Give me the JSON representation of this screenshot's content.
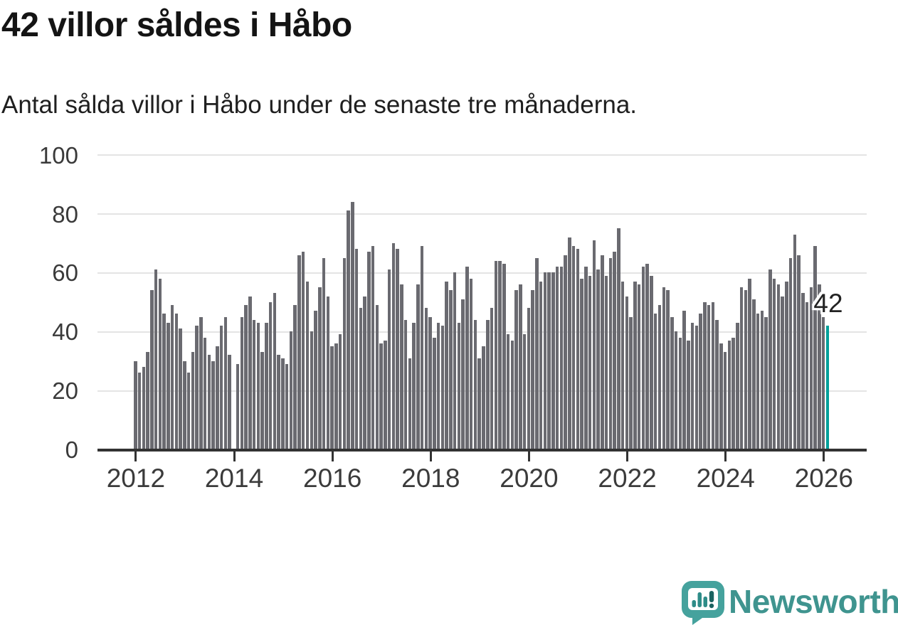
{
  "header": {
    "title": "42 villor såldes i Håbo",
    "subtitle": "Antal sålda villor i Håbo under de senaste tre månaderna."
  },
  "annotation": {
    "label": "42"
  },
  "logo": {
    "text": "Newsworthy",
    "icon": "newsworthy-speech-bubble-bar-chart-icon"
  },
  "colors": {
    "bar": "#6a6a70",
    "highlight": "#00a09a",
    "axis": "#333333",
    "grid": "#e4e4e4",
    "tick_text": "#3b3b3b",
    "title_text": "#141414",
    "logo_teal": "#3f948f",
    "logo_bubble": "#45a29d"
  },
  "chart_data": {
    "type": "bar",
    "title": "42 villor såldes i Håbo",
    "subtitle": "Antal sålda villor i Håbo under de senaste tre månaderna.",
    "ylabel": "",
    "xlabel": "",
    "ylim": [
      0,
      100
    ],
    "grid": true,
    "frequency": "monthly",
    "x_start": "2012-01",
    "x_end": "2026-02",
    "y_ticks": [
      0,
      20,
      40,
      60,
      80,
      100
    ],
    "x_ticks": [
      {
        "label": "2012",
        "month_index": 0
      },
      {
        "label": "2014",
        "month_index": 24
      },
      {
        "label": "2016",
        "month_index": 48
      },
      {
        "label": "2018",
        "month_index": 72
      },
      {
        "label": "2020",
        "month_index": 96
      },
      {
        "label": "2022",
        "month_index": 120
      },
      {
        "label": "2024",
        "month_index": 144
      },
      {
        "label": "2026",
        "month_index": 168
      }
    ],
    "values": [
      30,
      26,
      28,
      33,
      54,
      61,
      58,
      46,
      43,
      49,
      46,
      41,
      30,
      26,
      33,
      42,
      45,
      38,
      32,
      30,
      35,
      42,
      45,
      32,
      0,
      29,
      45,
      49,
      52,
      44,
      43,
      33,
      43,
      50,
      53,
      32,
      31,
      29,
      40,
      49,
      66,
      67,
      57,
      40,
      47,
      55,
      65,
      52,
      35,
      36,
      39,
      65,
      81,
      84,
      68,
      48,
      52,
      67,
      69,
      49,
      36,
      37,
      61,
      70,
      68,
      56,
      44,
      31,
      43,
      56,
      69,
      48,
      45,
      38,
      43,
      42,
      57,
      54,
      60,
      43,
      51,
      62,
      58,
      44,
      31,
      35,
      44,
      48,
      64,
      64,
      63,
      39,
      37,
      54,
      56,
      39,
      48,
      54,
      65,
      57,
      60,
      60,
      60,
      62,
      62,
      66,
      72,
      69,
      68,
      58,
      62,
      59,
      71,
      61,
      66,
      59,
      65,
      67,
      75,
      57,
      52,
      45,
      57,
      56,
      62,
      63,
      59,
      46,
      49,
      55,
      54,
      45,
      40,
      38,
      47,
      37,
      43,
      42,
      46,
      50,
      49,
      50,
      44,
      36,
      33,
      37,
      38,
      43,
      55,
      54,
      58,
      51,
      46,
      47,
      45,
      61,
      58,
      56,
      52,
      57,
      65,
      73,
      66,
      53,
      50,
      55,
      69,
      56,
      45,
      42
    ],
    "highlight_last": {
      "value": 42,
      "label": "42"
    },
    "legend": null
  }
}
